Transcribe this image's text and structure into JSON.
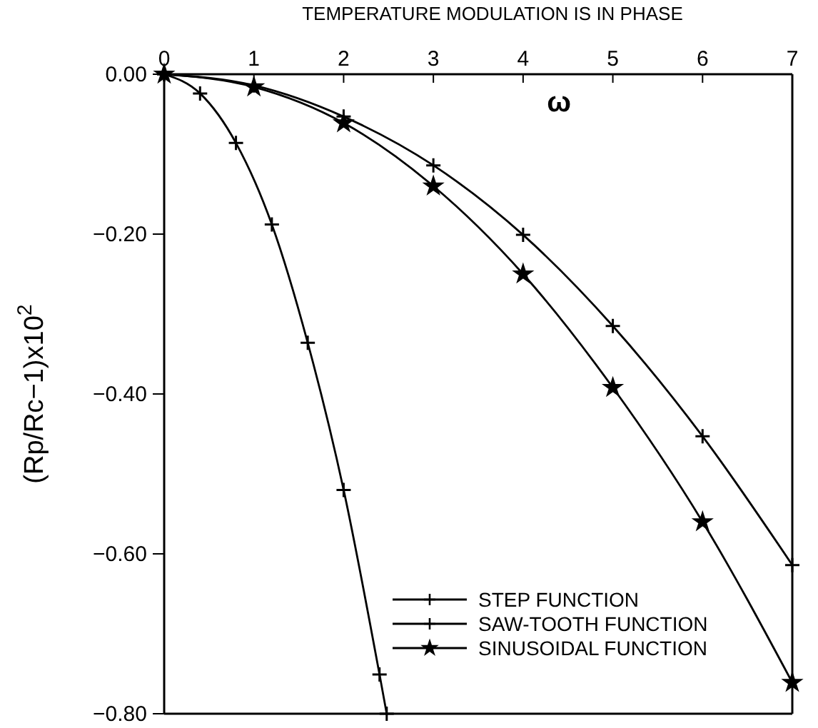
{
  "chart_data": {
    "type": "line",
    "title": "TEMPERATURE MODULATION IS IN PHASE",
    "xlabel": "ω",
    "ylabel": "(Rp/Rc−1)x10$^{2}$",
    "xlim": [
      0,
      7
    ],
    "xticks": [
      0,
      1,
      2,
      3,
      4,
      5,
      6,
      7
    ],
    "ylim": [
      -0.8,
      0
    ],
    "yticks": [
      {
        "value": 0,
        "label": "0.00"
      },
      {
        "value": -0.2,
        "label": "−0.20"
      },
      {
        "value": -0.4,
        "label": "−0.40"
      },
      {
        "value": -0.6,
        "label": "−0.60"
      },
      {
        "value": -0.8,
        "label": "−0.80"
      }
    ],
    "grid": false,
    "legend": "bottom right",
    "line_style": "solid",
    "series": [
      {
        "name": "STEP FUNCTION",
        "color": "#000000",
        "marker": "cross",
        "x": [
          0,
          0.4,
          0.8,
          1.2,
          1.6,
          2.0,
          2.4,
          2.48
        ],
        "values": [
          0,
          -0.024,
          -0.086,
          -0.188,
          -0.336,
          -0.52,
          -0.751,
          -0.8
        ]
      },
      {
        "name": "SAW-TOOTH FUNCTION",
        "color": "#000000",
        "marker": "cross",
        "x": [
          0,
          1,
          2,
          3,
          4,
          5,
          6,
          7
        ],
        "values": [
          0,
          -0.014,
          -0.053,
          -0.114,
          -0.201,
          -0.315,
          -0.453,
          -0.614
        ]
      },
      {
        "name": "SINUSOIDAL FUNCTION",
        "color": "#000000",
        "marker": "star",
        "x": [
          0,
          1,
          2,
          3,
          4,
          5,
          6,
          7
        ],
        "values": [
          0,
          -0.016,
          -0.061,
          -0.14,
          -0.25,
          -0.392,
          -0.56,
          -0.761
        ]
      }
    ]
  }
}
